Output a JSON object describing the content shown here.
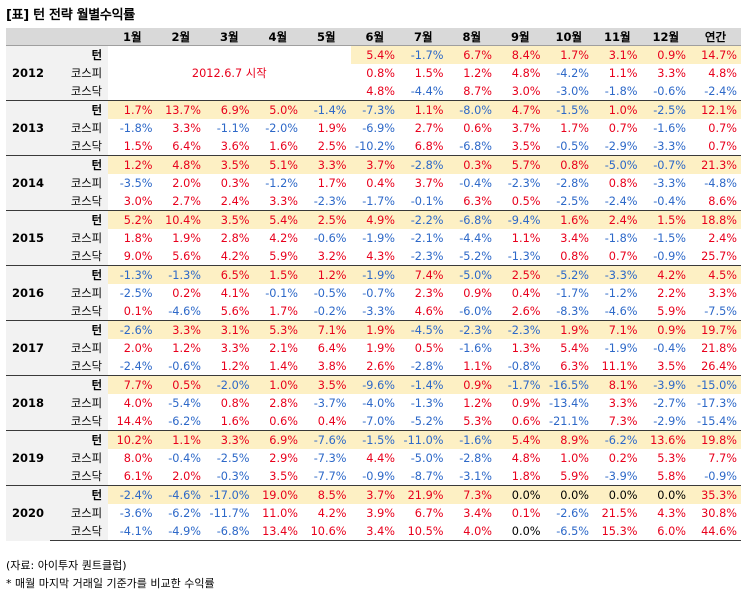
{
  "title": "[표] 턴 전략 월별수익률",
  "headers": [
    "1월",
    "2월",
    "3월",
    "4월",
    "5월",
    "6월",
    "7월",
    "8월",
    "9월",
    "10월",
    "11월",
    "12월",
    "연간"
  ],
  "series_labels": [
    "턴",
    "코스피",
    "코스닥"
  ],
  "note_2012": "2012.6.7 시작",
  "years": [
    {
      "year": "2012",
      "rows": [
        [
          "",
          "",
          "",
          "",
          "",
          "5.4%",
          "-1.7%",
          "6.7%",
          "8.4%",
          "1.7%",
          "3.1%",
          "0.9%",
          "14.7%"
        ],
        [
          "",
          "",
          "",
          "",
          "",
          "0.8%",
          "1.5%",
          "1.2%",
          "4.8%",
          "-4.2%",
          "1.1%",
          "3.3%",
          "4.8%"
        ],
        [
          "",
          "",
          "",
          "",
          "",
          "4.8%",
          "-4.4%",
          "8.7%",
          "3.0%",
          "-3.0%",
          "-1.8%",
          "-0.6%",
          "-2.4%"
        ]
      ]
    },
    {
      "year": "2013",
      "rows": [
        [
          "1.7%",
          "13.7%",
          "6.9%",
          "5.0%",
          "-1.4%",
          "-7.3%",
          "1.1%",
          "-8.0%",
          "4.7%",
          "-1.5%",
          "1.0%",
          "-2.5%",
          "12.1%"
        ],
        [
          "-1.8%",
          "3.3%",
          "-1.1%",
          "-2.0%",
          "1.9%",
          "-6.9%",
          "2.7%",
          "0.6%",
          "3.7%",
          "1.7%",
          "0.7%",
          "-1.6%",
          "0.7%"
        ],
        [
          "1.5%",
          "6.4%",
          "3.6%",
          "1.6%",
          "2.5%",
          "-10.2%",
          "6.8%",
          "-6.8%",
          "3.5%",
          "-0.5%",
          "-2.9%",
          "-3.3%",
          "0.7%"
        ]
      ]
    },
    {
      "year": "2014",
      "rows": [
        [
          "1.2%",
          "4.8%",
          "3.5%",
          "5.1%",
          "3.3%",
          "3.7%",
          "-2.8%",
          "0.3%",
          "5.7%",
          "0.8%",
          "-5.0%",
          "-0.7%",
          "21.3%"
        ],
        [
          "-3.5%",
          "2.0%",
          "0.3%",
          "-1.2%",
          "1.7%",
          "0.4%",
          "3.7%",
          "-0.4%",
          "-2.3%",
          "-2.8%",
          "0.8%",
          "-3.3%",
          "-4.8%"
        ],
        [
          "3.0%",
          "2.7%",
          "2.4%",
          "3.3%",
          "-2.3%",
          "-1.7%",
          "-0.1%",
          "6.3%",
          "0.5%",
          "-2.5%",
          "-2.4%",
          "-0.4%",
          "8.6%"
        ]
      ]
    },
    {
      "year": "2015",
      "rows": [
        [
          "5.2%",
          "10.4%",
          "3.5%",
          "5.4%",
          "2.5%",
          "4.9%",
          "-2.2%",
          "-6.8%",
          "-9.4%",
          "1.6%",
          "2.4%",
          "1.5%",
          "18.8%"
        ],
        [
          "1.8%",
          "1.9%",
          "2.8%",
          "4.2%",
          "-0.6%",
          "-1.9%",
          "-2.1%",
          "-4.4%",
          "1.1%",
          "3.4%",
          "-1.8%",
          "-1.5%",
          "2.4%"
        ],
        [
          "9.0%",
          "5.6%",
          "4.2%",
          "5.9%",
          "3.2%",
          "4.3%",
          "-2.3%",
          "-5.2%",
          "-1.3%",
          "0.8%",
          "0.7%",
          "-0.9%",
          "25.7%"
        ]
      ]
    },
    {
      "year": "2016",
      "rows": [
        [
          "-1.3%",
          "-1.3%",
          "6.5%",
          "1.5%",
          "1.2%",
          "-1.9%",
          "7.4%",
          "-5.0%",
          "2.5%",
          "-5.2%",
          "-3.3%",
          "4.2%",
          "4.5%"
        ],
        [
          "-2.5%",
          "0.2%",
          "4.1%",
          "-0.1%",
          "-0.5%",
          "-0.7%",
          "2.3%",
          "0.9%",
          "0.4%",
          "-1.7%",
          "-1.2%",
          "2.2%",
          "3.3%"
        ],
        [
          "0.1%",
          "-4.6%",
          "5.6%",
          "1.7%",
          "-0.2%",
          "-3.3%",
          "4.6%",
          "-6.0%",
          "2.6%",
          "-8.3%",
          "-4.6%",
          "5.9%",
          "-7.5%"
        ]
      ]
    },
    {
      "year": "2017",
      "rows": [
        [
          "-2.6%",
          "3.3%",
          "3.1%",
          "5.3%",
          "7.1%",
          "1.9%",
          "-4.5%",
          "-2.3%",
          "-2.3%",
          "1.9%",
          "7.1%",
          "0.9%",
          "19.7%"
        ],
        [
          "2.0%",
          "1.2%",
          "3.3%",
          "2.1%",
          "6.4%",
          "1.9%",
          "0.5%",
          "-1.6%",
          "1.3%",
          "5.4%",
          "-1.9%",
          "-0.4%",
          "21.8%"
        ],
        [
          "-2.4%",
          "-0.6%",
          "1.2%",
          "1.4%",
          "3.8%",
          "2.6%",
          "-2.8%",
          "1.1%",
          "-0.8%",
          "6.3%",
          "11.1%",
          "3.5%",
          "26.4%"
        ]
      ]
    },
    {
      "year": "2018",
      "rows": [
        [
          "7.7%",
          "0.5%",
          "-2.0%",
          "1.0%",
          "3.5%",
          "-9.6%",
          "-1.4%",
          "0.9%",
          "-1.7%",
          "-16.5%",
          "8.1%",
          "-3.9%",
          "-15.0%"
        ],
        [
          "4.0%",
          "-5.4%",
          "0.8%",
          "2.8%",
          "-3.7%",
          "-4.0%",
          "-1.3%",
          "1.2%",
          "0.9%",
          "-13.4%",
          "3.3%",
          "-2.7%",
          "-17.3%"
        ],
        [
          "14.4%",
          "-6.2%",
          "1.6%",
          "0.6%",
          "0.4%",
          "-7.0%",
          "-5.2%",
          "5.3%",
          "0.6%",
          "-21.1%",
          "7.3%",
          "-2.9%",
          "-15.4%"
        ]
      ]
    },
    {
      "year": "2019",
      "rows": [
        [
          "10.2%",
          "1.1%",
          "3.3%",
          "6.9%",
          "-7.6%",
          "-1.5%",
          "-11.0%",
          "-1.6%",
          "5.4%",
          "8.9%",
          "-6.2%",
          "13.6%",
          "19.8%"
        ],
        [
          "8.0%",
          "-0.4%",
          "-2.5%",
          "2.9%",
          "-7.3%",
          "4.4%",
          "-5.0%",
          "-2.8%",
          "4.8%",
          "1.0%",
          "0.2%",
          "5.3%",
          "7.7%"
        ],
        [
          "6.1%",
          "2.0%",
          "-0.3%",
          "3.5%",
          "-7.7%",
          "-0.9%",
          "-8.7%",
          "-3.1%",
          "1.8%",
          "5.9%",
          "-3.9%",
          "5.8%",
          "-0.9%"
        ]
      ]
    },
    {
      "year": "2020",
      "rows": [
        [
          "-2.4%",
          "-4.6%",
          "-17.0%",
          "19.0%",
          "8.5%",
          "3.7%",
          "21.9%",
          "7.3%",
          "0.0%",
          "0.0%",
          "0.0%",
          "0.0%",
          "35.3%"
        ],
        [
          "-3.6%",
          "-6.2%",
          "-11.7%",
          "11.0%",
          "4.2%",
          "3.9%",
          "6.7%",
          "3.4%",
          "0.1%",
          "-2.6%",
          "21.5%",
          "4.3%",
          "30.8%"
        ],
        [
          "-4.1%",
          "-4.9%",
          "-6.8%",
          "13.4%",
          "10.6%",
          "3.4%",
          "10.5%",
          "4.0%",
          "0.0%",
          "-6.5%",
          "15.3%",
          "6.0%",
          "44.6%"
        ]
      ]
    }
  ],
  "source": "(자료: 아이투자 퀀트클럽)",
  "footnote": "* 매월 마지막 거래일 기준가를 비교한 수익률"
}
